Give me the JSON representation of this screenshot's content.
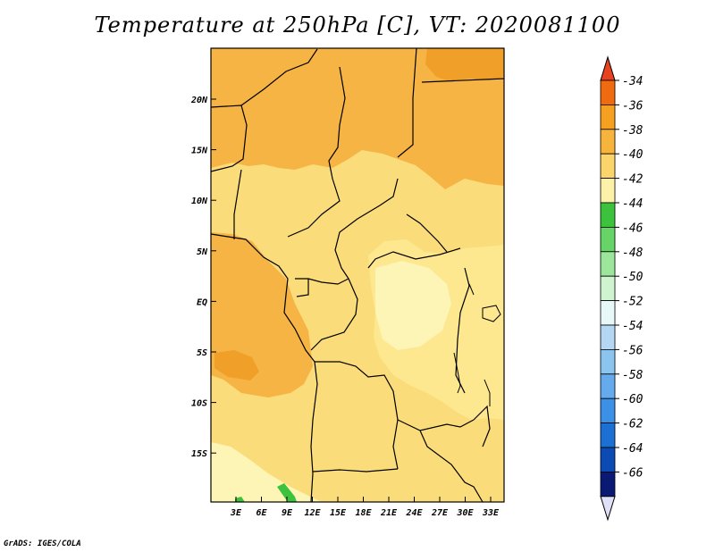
{
  "title": "Temperature at 250hPa [C], VT: 2020081100",
  "credit": "GrADS: IGES/COLA",
  "map": {
    "lon_labels": [
      "3E",
      "6E",
      "9E",
      "12E",
      "15E",
      "18E",
      "21E",
      "24E",
      "27E",
      "30E",
      "33E"
    ],
    "lat_labels": [
      "20N",
      "15N",
      "10N",
      "5N",
      "EQ",
      "5S",
      "10S",
      "15S"
    ],
    "fill_colors": {
      "c36_34": "#f0a028",
      "c38_36": "#f5b443",
      "c40_38": "#fadd7a",
      "c42_40": "#fde78f",
      "c44_42": "#fdf5b5",
      "green_patch": "#3cc23c"
    }
  },
  "colorbar": {
    "labels": [
      "-34",
      "-36",
      "-38",
      "-40",
      "-42",
      "-44",
      "-46",
      "-48",
      "-50",
      "-52",
      "-54",
      "-56",
      "-58",
      "-60",
      "-62",
      "-64",
      "-66"
    ],
    "top_triangle_color": "#e8421e",
    "bottom_triangle_color": "#e0e0f8",
    "segment_colors": [
      "#f06a10",
      "#f5a020",
      "#f7b43c",
      "#fbd46c",
      "#fdf0a8",
      "#3cc23c",
      "#66d466",
      "#9ce69c",
      "#cff2cf",
      "#e8f8f8",
      "#b4d8f4",
      "#8cc4f0",
      "#64aaec",
      "#3c90e6",
      "#1c70d4",
      "#0c4ab4",
      "#0a1a74"
    ]
  }
}
